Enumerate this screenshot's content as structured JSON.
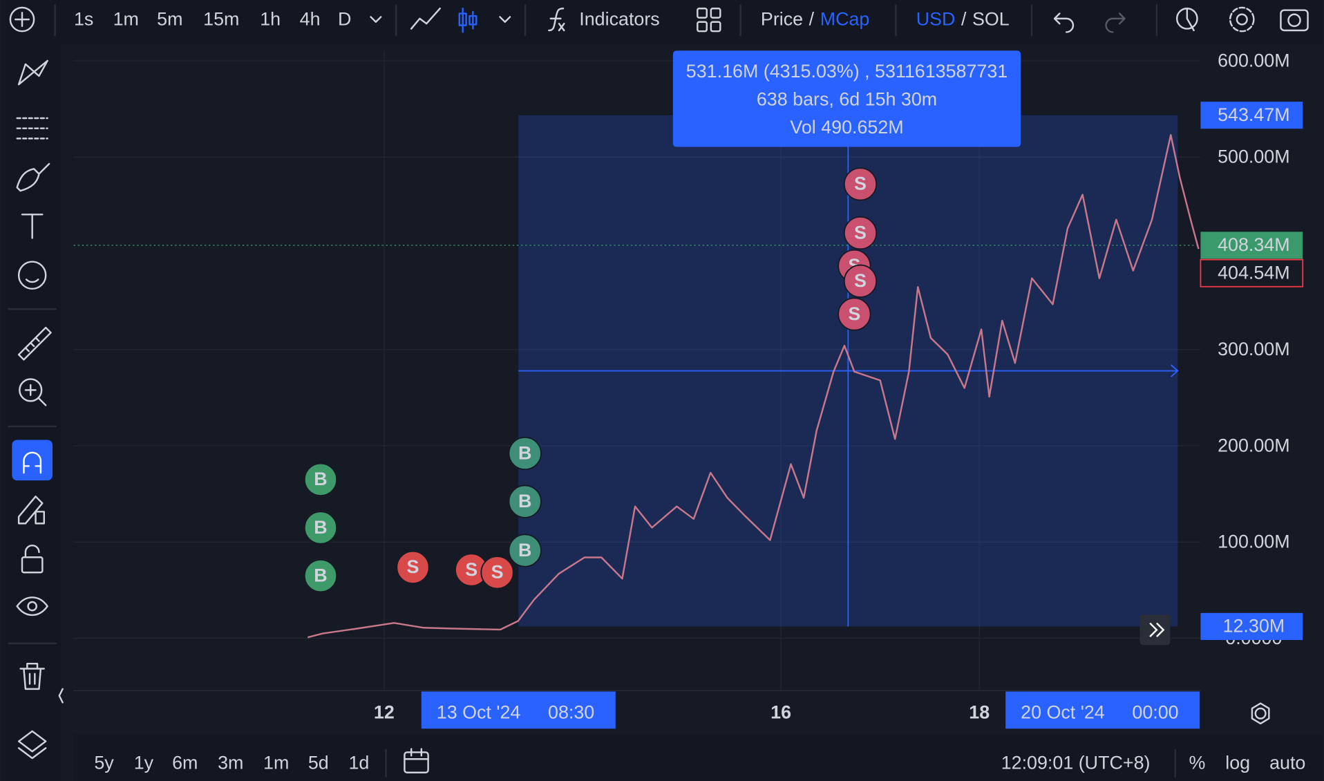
{
  "top_bar": {
    "intervals": [
      {
        "label": "1s"
      },
      {
        "label": "1m"
      },
      {
        "label": "5m"
      },
      {
        "label": "15m",
        "active": true
      },
      {
        "label": "1h"
      },
      {
        "label": "4h"
      },
      {
        "label": "D"
      }
    ],
    "indicators": "Indicators",
    "price_toggle": {
      "left": "Price",
      "separator": "/",
      "right": "MCap",
      "active": "right"
    },
    "currency_toggle": {
      "left": "USD",
      "separator": "/",
      "right": "SOL",
      "active": "left"
    }
  },
  "bottom_bar": {
    "ranges": [
      "5y",
      "1y",
      "6m",
      "3m",
      "1m",
      "5d",
      "1d"
    ],
    "clock": "12:09:01 (UTC+8)",
    "scale_options": [
      {
        "label": "%"
      },
      {
        "label": "log"
      },
      {
        "label": "auto",
        "active": true
      }
    ]
  },
  "chart_data": {
    "type": "line",
    "color": "#c9788c",
    "x": [
      11.23,
      11.38,
      11.72,
      12.1,
      12.4,
      12.74,
      13.17,
      13.35,
      13.51,
      13.76,
      14.02,
      14.19,
      14.4,
      14.53,
      14.7,
      14.95,
      15.12,
      15.29,
      15.46,
      15.63,
      15.89,
      16.1,
      16.23,
      16.36,
      16.53,
      16.64,
      16.74,
      17.0,
      17.15,
      17.29,
      17.38,
      17.51,
      17.68,
      17.85,
      18.02,
      18.1,
      18.23,
      18.36,
      18.53,
      18.74,
      18.89,
      19.04,
      19.21,
      19.38,
      19.55,
      19.74,
      19.93,
      20.02,
      20.13,
      20.21
    ],
    "values": [
      1,
      5,
      10,
      16,
      11,
      10,
      9,
      18,
      40,
      67,
      84,
      84,
      62,
      137,
      115,
      137,
      124,
      172,
      146,
      128,
      102,
      181,
      146,
      216,
      277,
      304,
      277,
      268,
      207,
      277,
      365,
      312,
      295,
      260,
      321,
      251,
      330,
      286,
      374,
      347,
      426,
      461,
      374,
      435,
      382,
      435,
      523,
      479,
      435,
      404.54
    ],
    "xlim": [
      8.87,
      20.23
    ],
    "xticks": [
      12,
      16,
      18
    ],
    "ylim": [
      -54.39,
      610.53
    ],
    "yticks": [
      {
        "value": 0,
        "label": "0.0000"
      },
      {
        "value": 100,
        "label": "100.00M"
      },
      {
        "value": 200,
        "label": "200.00M"
      },
      {
        "value": 300,
        "label": "300.00M"
      },
      {
        "value": 500,
        "label": "500.00M"
      },
      {
        "value": 600,
        "label": "600.00M"
      }
    ],
    "grid": true,
    "price_labels": [
      {
        "value": 543.47,
        "label": "543.47M",
        "style": "filled",
        "color": "#2962ff"
      },
      {
        "value": 408.34,
        "label": "408.34M",
        "style": "filled",
        "color": "#3b9a6b",
        "dotted_line": true
      },
      {
        "value": 404.54,
        "label": "404.54M",
        "style": "outline",
        "color": "#f23645"
      },
      {
        "value": 12.3,
        "label": "12.30M",
        "style": "filled",
        "color": "#2962ff"
      }
    ],
    "range_labels": [
      {
        "x": 13.354,
        "date": "13 Oct '24",
        "time": "08:30"
      },
      {
        "x": 20.0,
        "date": "20 Oct '24",
        "time": "00:00"
      }
    ],
    "tooltip": [
      "531.16M (4315.03%) , 5311613587731",
      "638 bars, 6d 15h 30m",
      "Vol 490.652M"
    ],
    "markers": [
      {
        "x": 11.36,
        "y": 164.9,
        "label": "B",
        "color": "#3f9a6a"
      },
      {
        "x": 11.36,
        "y": 114.9,
        "label": "B",
        "color": "#3f9a6a"
      },
      {
        "x": 11.36,
        "y": 64.9,
        "label": "B",
        "color": "#3f9a6a"
      },
      {
        "x": 12.29,
        "y": 73.7,
        "label": "S",
        "color": "#d84a4a"
      },
      {
        "x": 12.88,
        "y": 71.1,
        "label": "S",
        "color": "#d84a4a"
      },
      {
        "x": 13.14,
        "y": 68.4,
        "label": "S",
        "color": "#d84a4a"
      },
      {
        "x": 13.42,
        "y": 192.1,
        "label": "B",
        "color": "#3f8f78"
      },
      {
        "x": 13.42,
        "y": 142.1,
        "label": "B",
        "color": "#3f8f78"
      },
      {
        "x": 13.42,
        "y": 91.2,
        "label": "B",
        "color": "#3f8f78"
      },
      {
        "x": 16.8,
        "y": 471.9,
        "label": "S",
        "color": "#c9506e"
      },
      {
        "x": 16.8,
        "y": 421.1,
        "label": "S",
        "color": "#c9506e"
      },
      {
        "x": 16.74,
        "y": 386.8,
        "label": "S",
        "color": "#c9506e"
      },
      {
        "x": 16.8,
        "y": 371.1,
        "label": "S",
        "color": "#c9506e"
      },
      {
        "x": 16.74,
        "y": 336.8,
        "label": "S",
        "color": "#c9506e"
      }
    ]
  }
}
